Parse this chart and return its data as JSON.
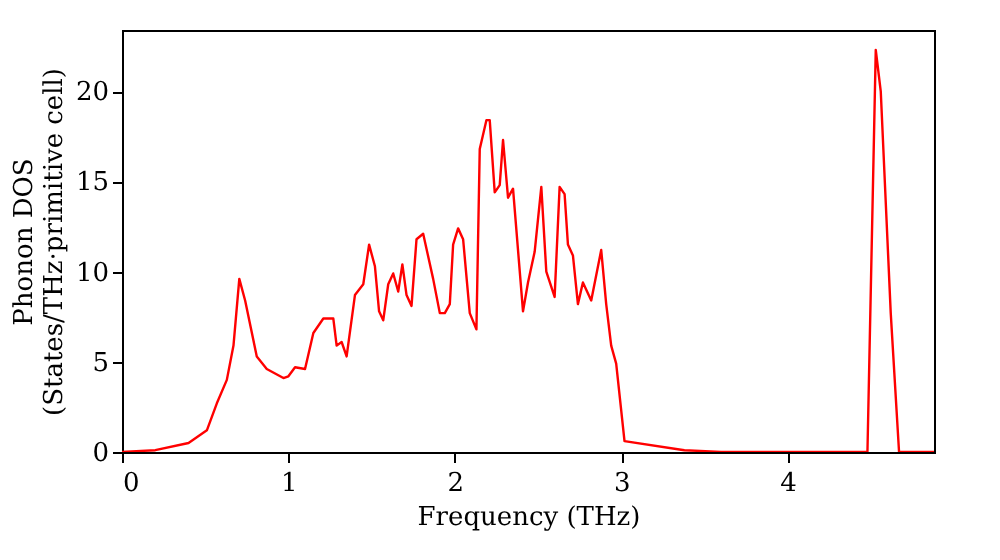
{
  "chart_data": {
    "type": "line",
    "xlabel": "Frequency (THz)",
    "ylabel": "Phonon DOS\n(States/THz·primitive cell)",
    "x": [
      0,
      0.2,
      0.4,
      0.51,
      0.57,
      0.63,
      0.67,
      0.705,
      0.74,
      0.81,
      0.87,
      0.97,
      1.0,
      1.04,
      1.1,
      1.15,
      1.21,
      1.27,
      1.29,
      1.32,
      1.35,
      1.4,
      1.45,
      1.485,
      1.52,
      1.545,
      1.57,
      1.6,
      1.63,
      1.66,
      1.685,
      1.71,
      1.74,
      1.77,
      1.81,
      1.87,
      1.91,
      1.94,
      1.97,
      1.99,
      2.02,
      2.05,
      2.09,
      2.13,
      2.15,
      2.19,
      2.21,
      2.24,
      2.27,
      2.29,
      2.32,
      2.35,
      2.41,
      2.44,
      2.48,
      2.52,
      2.55,
      2.6,
      2.63,
      2.66,
      2.68,
      2.71,
      2.74,
      2.77,
      2.82,
      2.88,
      2.91,
      2.94,
      2.97,
      3.02,
      3.38,
      3.6,
      4.48,
      4.53,
      4.56,
      4.62,
      4.67,
      4.88
    ],
    "series": [
      {
        "color": "#ff0000",
        "values": [
          0,
          0.1,
          0.5,
          1.2,
          2.7,
          4,
          5.9,
          9.6,
          8.4,
          5.3,
          4.6,
          4.1,
          4.2,
          4.7,
          4.6,
          6.6,
          7.4,
          7.4,
          5.9,
          6.1,
          5.3,
          8.7,
          9.3,
          11.5,
          10.3,
          7.8,
          7.3,
          9.3,
          9.9,
          8.9,
          10.4,
          8.7,
          8.1,
          11.8,
          12.1,
          9.6,
          7.7,
          7.7,
          8.2,
          11.5,
          12.4,
          11.8,
          7.7,
          6.8,
          16.8,
          18.4,
          18.4,
          14.4,
          14.8,
          17.3,
          14.1,
          14.6,
          7.8,
          9.4,
          11.1,
          14.7,
          10,
          8.6,
          14.7,
          14.3,
          11.5,
          10.9,
          8.2,
          9.4,
          8.4,
          11.2,
          8.2,
          5.9,
          4.9,
          0.6,
          0.1,
          0,
          0,
          22.3,
          20,
          7.7,
          0,
          0
        ]
      }
    ],
    "xlim": [
      0,
      4.88
    ],
    "ylim": [
      0,
      23.4
    ],
    "xticks": [
      0,
      1,
      2,
      3,
      4
    ],
    "yticks": [
      0,
      5,
      10,
      15,
      20
    ],
    "grid": false,
    "legend": false,
    "line_style": "solid",
    "marker": "none"
  }
}
